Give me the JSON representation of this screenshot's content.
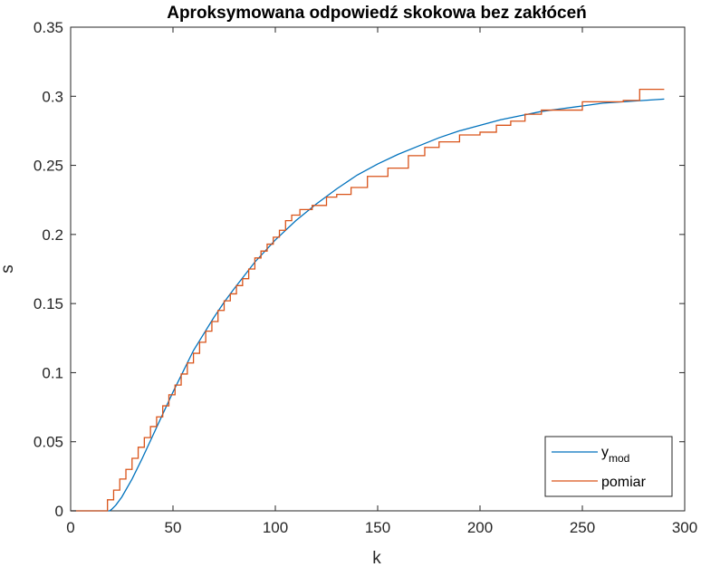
{
  "chart_data": {
    "type": "line",
    "title": "Aproksymowana odpowiedź skokowa bez zakłóceń",
    "xlabel": "k",
    "ylabel": "s",
    "xlim": [
      0,
      300
    ],
    "ylim": [
      0,
      0.35
    ],
    "xticks": [
      0,
      50,
      100,
      150,
      200,
      250,
      300
    ],
    "xtick_labels": [
      "0",
      "50",
      "100",
      "150",
      "200",
      "250",
      "300"
    ],
    "yticks": [
      0,
      0.05,
      0.1,
      0.15,
      0.2,
      0.25,
      0.3,
      0.35
    ],
    "ytick_labels": [
      "0",
      "0.05",
      "0.1",
      "0.15",
      "0.2",
      "0.25",
      "0.3",
      "0.35"
    ],
    "grid": false,
    "legend_position": "bottom-right",
    "series": [
      {
        "name": "y_mod",
        "legend_main": "y",
        "legend_sub": "mod",
        "color": "#0072BD",
        "step": false,
        "x": [
          0,
          19,
          20,
          22,
          25,
          30,
          35,
          40,
          45,
          50,
          55,
          60,
          65,
          70,
          75,
          80,
          90,
          100,
          110,
          120,
          130,
          140,
          150,
          160,
          170,
          180,
          190,
          200,
          210,
          220,
          230,
          240,
          250,
          260,
          270,
          280,
          290
        ],
        "y": [
          0,
          0,
          0.001,
          0.004,
          0.01,
          0.023,
          0.038,
          0.054,
          0.07,
          0.086,
          0.101,
          0.116,
          0.128,
          0.14,
          0.151,
          0.161,
          0.18,
          0.196,
          0.21,
          0.222,
          0.233,
          0.243,
          0.251,
          0.258,
          0.264,
          0.27,
          0.275,
          0.279,
          0.283,
          0.286,
          0.289,
          0.291,
          0.293,
          0.295,
          0.296,
          0.297,
          0.298
        ]
      },
      {
        "name": "pomiar",
        "legend_main": "pomiar",
        "color": "#D95319",
        "step": true,
        "x": [
          0,
          18,
          21,
          24,
          27,
          30,
          33,
          36,
          39,
          42,
          45,
          48,
          51,
          54,
          57,
          60,
          63,
          66,
          69,
          72,
          75,
          78,
          81,
          84,
          87,
          90,
          93,
          96,
          99,
          102,
          105,
          108,
          112,
          118,
          125,
          130,
          137,
          145,
          155,
          165,
          173,
          180,
          190,
          200,
          208,
          215,
          222,
          230,
          240,
          250,
          262,
          270,
          278,
          282,
          290
        ],
        "y": [
          0,
          0.008,
          0.015,
          0.023,
          0.03,
          0.038,
          0.046,
          0.053,
          0.061,
          0.068,
          0.076,
          0.084,
          0.091,
          0.099,
          0.107,
          0.114,
          0.122,
          0.13,
          0.137,
          0.145,
          0.152,
          0.157,
          0.163,
          0.168,
          0.175,
          0.183,
          0.188,
          0.193,
          0.198,
          0.203,
          0.21,
          0.214,
          0.218,
          0.221,
          0.227,
          0.229,
          0.234,
          0.242,
          0.248,
          0.257,
          0.263,
          0.267,
          0.272,
          0.274,
          0.279,
          0.282,
          0.287,
          0.29,
          0.29,
          0.296,
          0.296,
          0.297,
          0.305,
          0.305,
          0.305
        ]
      }
    ]
  }
}
